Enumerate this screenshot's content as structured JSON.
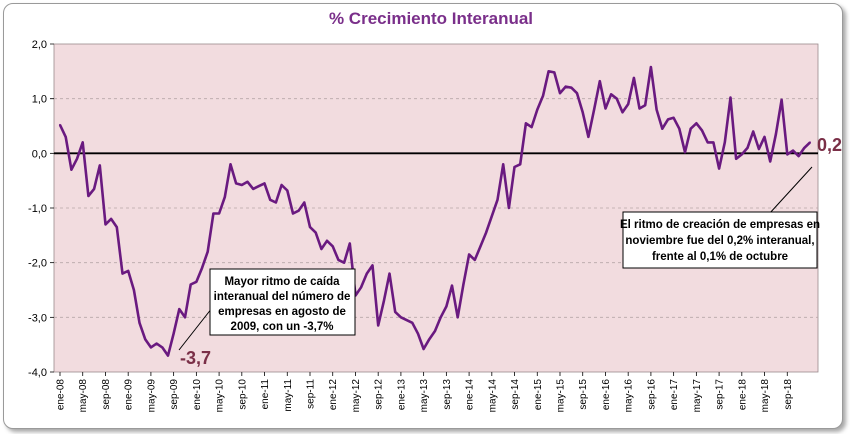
{
  "chart_data": {
    "type": "line",
    "title": "% Crecimiento Interanual",
    "ylim": [
      -4.0,
      2.0
    ],
    "yticks": [
      2.0,
      1.0,
      0.0,
      -1.0,
      -2.0,
      -3.0,
      -4.0
    ],
    "ytick_labels": [
      "2,0",
      "1,0",
      "0,0",
      "-1,0",
      "-2,0",
      "-3,0",
      "-4,0"
    ],
    "xtick_labels": [
      "ene-08",
      "may-08",
      "sep-08",
      "ene-09",
      "may-09",
      "sep-09",
      "ene-10",
      "may-10",
      "sep-10",
      "ene-11",
      "may-11",
      "sep-11",
      "ene-12",
      "may-12",
      "sep-12",
      "ene-13",
      "may-13",
      "sep-13",
      "ene-14",
      "may-14",
      "sep-14",
      "ene-15",
      "may-15",
      "sep-15",
      "ene-16",
      "may-16",
      "sep-16",
      "ene-17",
      "may-17",
      "sep-17",
      "ene-18",
      "may-18",
      "sep-18"
    ],
    "series": [
      {
        "name": "% Crecimiento Interanual",
        "color": "#6a1a80",
        "start": "ene-08",
        "values": [
          0.52,
          0.3,
          -0.3,
          -0.1,
          0.2,
          -0.78,
          -0.65,
          -0.22,
          -1.3,
          -1.2,
          -1.35,
          -2.2,
          -2.15,
          -2.5,
          -3.1,
          -3.4,
          -3.55,
          -3.48,
          -3.55,
          -3.7,
          -3.3,
          -2.85,
          -3.0,
          -2.4,
          -2.35,
          -2.1,
          -1.8,
          -1.1,
          -1.1,
          -0.8,
          -0.2,
          -0.55,
          -0.58,
          -0.52,
          -0.65,
          -0.6,
          -0.55,
          -0.85,
          -0.9,
          -0.58,
          -0.68,
          -1.1,
          -1.05,
          -0.9,
          -1.35,
          -1.45,
          -1.75,
          -1.6,
          -1.7,
          -1.95,
          -2.0,
          -1.65,
          -2.6,
          -2.45,
          -2.2,
          -2.05,
          -3.15,
          -2.7,
          -2.2,
          -2.9,
          -3.0,
          -3.05,
          -3.1,
          -3.3,
          -3.58,
          -3.4,
          -3.25,
          -3.0,
          -2.8,
          -2.42,
          -3.0,
          -2.4,
          -1.85,
          -1.95,
          -1.7,
          -1.45,
          -1.15,
          -0.85,
          -0.2,
          -1.0,
          -0.25,
          -0.2,
          0.55,
          0.48,
          0.8,
          1.05,
          1.5,
          1.48,
          1.1,
          1.22,
          1.2,
          1.1,
          0.75,
          0.3,
          0.8,
          1.32,
          0.82,
          1.08,
          1.0,
          0.75,
          0.9,
          1.38,
          0.82,
          0.88,
          1.58,
          0.8,
          0.45,
          0.62,
          0.65,
          0.45,
          0.02,
          0.45,
          0.55,
          0.42,
          0.2,
          0.2,
          -0.28,
          0.2,
          1.02,
          -0.1,
          -0.02,
          0.1,
          0.4,
          0.08,
          0.3,
          -0.15,
          0.35,
          0.98,
          -0.02,
          0.05,
          -0.05,
          0.1,
          0.2
        ]
      }
    ],
    "annotations": [
      {
        "point_label": "-3,7",
        "callout": [
          "Mayor ritmo de caída",
          "interanual del número de",
          "empresas en agosto de",
          "2009, con un -3,7%"
        ]
      },
      {
        "point_label": "0,2",
        "callout": [
          "El ritmo de creación de empresas en",
          "noviembre fue del 0,2% interanual,",
          "frente al 0,1% de octubre"
        ]
      }
    ],
    "colors": {
      "plot_bg": "#f2dcdf",
      "line": "#6a1a80",
      "grid": "#b8a6a8",
      "zero": "#000000"
    }
  }
}
